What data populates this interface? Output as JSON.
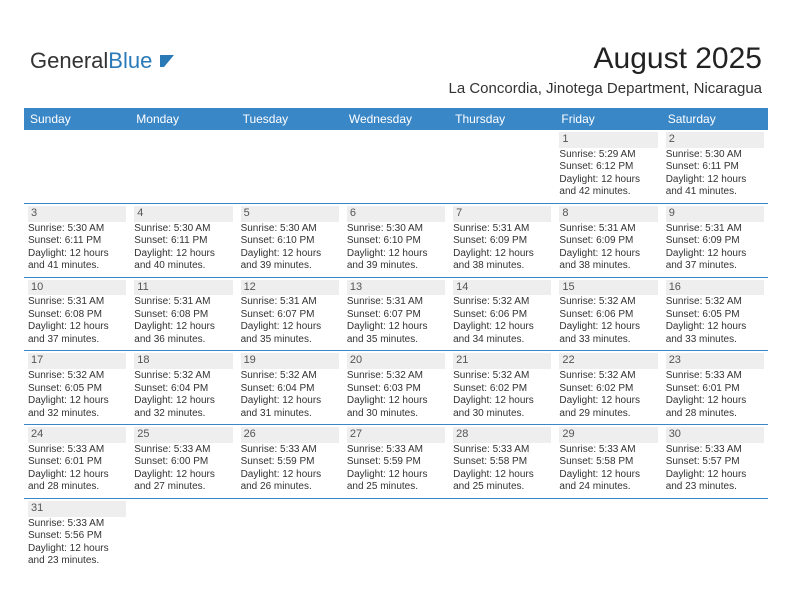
{
  "logo": {
    "text1": "General",
    "text2": "Blue"
  },
  "title": "August 2025",
  "location": "La Concordia, Jinotega Department, Nicaragua",
  "header_bg": "#3a87c7",
  "daynum_bg": "#eeeeee",
  "weekdays": [
    "Sunday",
    "Monday",
    "Tuesday",
    "Wednesday",
    "Thursday",
    "Friday",
    "Saturday"
  ],
  "weeks": [
    [
      {
        "empty": true
      },
      {
        "empty": true
      },
      {
        "empty": true
      },
      {
        "empty": true
      },
      {
        "empty": true
      },
      {
        "day": "1",
        "sunrise": "Sunrise: 5:29 AM",
        "sunset": "Sunset: 6:12 PM",
        "dl1": "Daylight: 12 hours",
        "dl2": "and 42 minutes."
      },
      {
        "day": "2",
        "sunrise": "Sunrise: 5:30 AM",
        "sunset": "Sunset: 6:11 PM",
        "dl1": "Daylight: 12 hours",
        "dl2": "and 41 minutes."
      }
    ],
    [
      {
        "day": "3",
        "sunrise": "Sunrise: 5:30 AM",
        "sunset": "Sunset: 6:11 PM",
        "dl1": "Daylight: 12 hours",
        "dl2": "and 41 minutes."
      },
      {
        "day": "4",
        "sunrise": "Sunrise: 5:30 AM",
        "sunset": "Sunset: 6:11 PM",
        "dl1": "Daylight: 12 hours",
        "dl2": "and 40 minutes."
      },
      {
        "day": "5",
        "sunrise": "Sunrise: 5:30 AM",
        "sunset": "Sunset: 6:10 PM",
        "dl1": "Daylight: 12 hours",
        "dl2": "and 39 minutes."
      },
      {
        "day": "6",
        "sunrise": "Sunrise: 5:30 AM",
        "sunset": "Sunset: 6:10 PM",
        "dl1": "Daylight: 12 hours",
        "dl2": "and 39 minutes."
      },
      {
        "day": "7",
        "sunrise": "Sunrise: 5:31 AM",
        "sunset": "Sunset: 6:09 PM",
        "dl1": "Daylight: 12 hours",
        "dl2": "and 38 minutes."
      },
      {
        "day": "8",
        "sunrise": "Sunrise: 5:31 AM",
        "sunset": "Sunset: 6:09 PM",
        "dl1": "Daylight: 12 hours",
        "dl2": "and 38 minutes."
      },
      {
        "day": "9",
        "sunrise": "Sunrise: 5:31 AM",
        "sunset": "Sunset: 6:09 PM",
        "dl1": "Daylight: 12 hours",
        "dl2": "and 37 minutes."
      }
    ],
    [
      {
        "day": "10",
        "sunrise": "Sunrise: 5:31 AM",
        "sunset": "Sunset: 6:08 PM",
        "dl1": "Daylight: 12 hours",
        "dl2": "and 37 minutes."
      },
      {
        "day": "11",
        "sunrise": "Sunrise: 5:31 AM",
        "sunset": "Sunset: 6:08 PM",
        "dl1": "Daylight: 12 hours",
        "dl2": "and 36 minutes."
      },
      {
        "day": "12",
        "sunrise": "Sunrise: 5:31 AM",
        "sunset": "Sunset: 6:07 PM",
        "dl1": "Daylight: 12 hours",
        "dl2": "and 35 minutes."
      },
      {
        "day": "13",
        "sunrise": "Sunrise: 5:31 AM",
        "sunset": "Sunset: 6:07 PM",
        "dl1": "Daylight: 12 hours",
        "dl2": "and 35 minutes."
      },
      {
        "day": "14",
        "sunrise": "Sunrise: 5:32 AM",
        "sunset": "Sunset: 6:06 PM",
        "dl1": "Daylight: 12 hours",
        "dl2": "and 34 minutes."
      },
      {
        "day": "15",
        "sunrise": "Sunrise: 5:32 AM",
        "sunset": "Sunset: 6:06 PM",
        "dl1": "Daylight: 12 hours",
        "dl2": "and 33 minutes."
      },
      {
        "day": "16",
        "sunrise": "Sunrise: 5:32 AM",
        "sunset": "Sunset: 6:05 PM",
        "dl1": "Daylight: 12 hours",
        "dl2": "and 33 minutes."
      }
    ],
    [
      {
        "day": "17",
        "sunrise": "Sunrise: 5:32 AM",
        "sunset": "Sunset: 6:05 PM",
        "dl1": "Daylight: 12 hours",
        "dl2": "and 32 minutes."
      },
      {
        "day": "18",
        "sunrise": "Sunrise: 5:32 AM",
        "sunset": "Sunset: 6:04 PM",
        "dl1": "Daylight: 12 hours",
        "dl2": "and 32 minutes."
      },
      {
        "day": "19",
        "sunrise": "Sunrise: 5:32 AM",
        "sunset": "Sunset: 6:04 PM",
        "dl1": "Daylight: 12 hours",
        "dl2": "and 31 minutes."
      },
      {
        "day": "20",
        "sunrise": "Sunrise: 5:32 AM",
        "sunset": "Sunset: 6:03 PM",
        "dl1": "Daylight: 12 hours",
        "dl2": "and 30 minutes."
      },
      {
        "day": "21",
        "sunrise": "Sunrise: 5:32 AM",
        "sunset": "Sunset: 6:02 PM",
        "dl1": "Daylight: 12 hours",
        "dl2": "and 30 minutes."
      },
      {
        "day": "22",
        "sunrise": "Sunrise: 5:32 AM",
        "sunset": "Sunset: 6:02 PM",
        "dl1": "Daylight: 12 hours",
        "dl2": "and 29 minutes."
      },
      {
        "day": "23",
        "sunrise": "Sunrise: 5:33 AM",
        "sunset": "Sunset: 6:01 PM",
        "dl1": "Daylight: 12 hours",
        "dl2": "and 28 minutes."
      }
    ],
    [
      {
        "day": "24",
        "sunrise": "Sunrise: 5:33 AM",
        "sunset": "Sunset: 6:01 PM",
        "dl1": "Daylight: 12 hours",
        "dl2": "and 28 minutes."
      },
      {
        "day": "25",
        "sunrise": "Sunrise: 5:33 AM",
        "sunset": "Sunset: 6:00 PM",
        "dl1": "Daylight: 12 hours",
        "dl2": "and 27 minutes."
      },
      {
        "day": "26",
        "sunrise": "Sunrise: 5:33 AM",
        "sunset": "Sunset: 5:59 PM",
        "dl1": "Daylight: 12 hours",
        "dl2": "and 26 minutes."
      },
      {
        "day": "27",
        "sunrise": "Sunrise: 5:33 AM",
        "sunset": "Sunset: 5:59 PM",
        "dl1": "Daylight: 12 hours",
        "dl2": "and 25 minutes."
      },
      {
        "day": "28",
        "sunrise": "Sunrise: 5:33 AM",
        "sunset": "Sunset: 5:58 PM",
        "dl1": "Daylight: 12 hours",
        "dl2": "and 25 minutes."
      },
      {
        "day": "29",
        "sunrise": "Sunrise: 5:33 AM",
        "sunset": "Sunset: 5:58 PM",
        "dl1": "Daylight: 12 hours",
        "dl2": "and 24 minutes."
      },
      {
        "day": "30",
        "sunrise": "Sunrise: 5:33 AM",
        "sunset": "Sunset: 5:57 PM",
        "dl1": "Daylight: 12 hours",
        "dl2": "and 23 minutes."
      }
    ],
    [
      {
        "day": "31",
        "sunrise": "Sunrise: 5:33 AM",
        "sunset": "Sunset: 5:56 PM",
        "dl1": "Daylight: 12 hours",
        "dl2": "and 23 minutes."
      },
      {
        "empty": true
      },
      {
        "empty": true
      },
      {
        "empty": true
      },
      {
        "empty": true
      },
      {
        "empty": true
      },
      {
        "empty": true
      }
    ]
  ]
}
